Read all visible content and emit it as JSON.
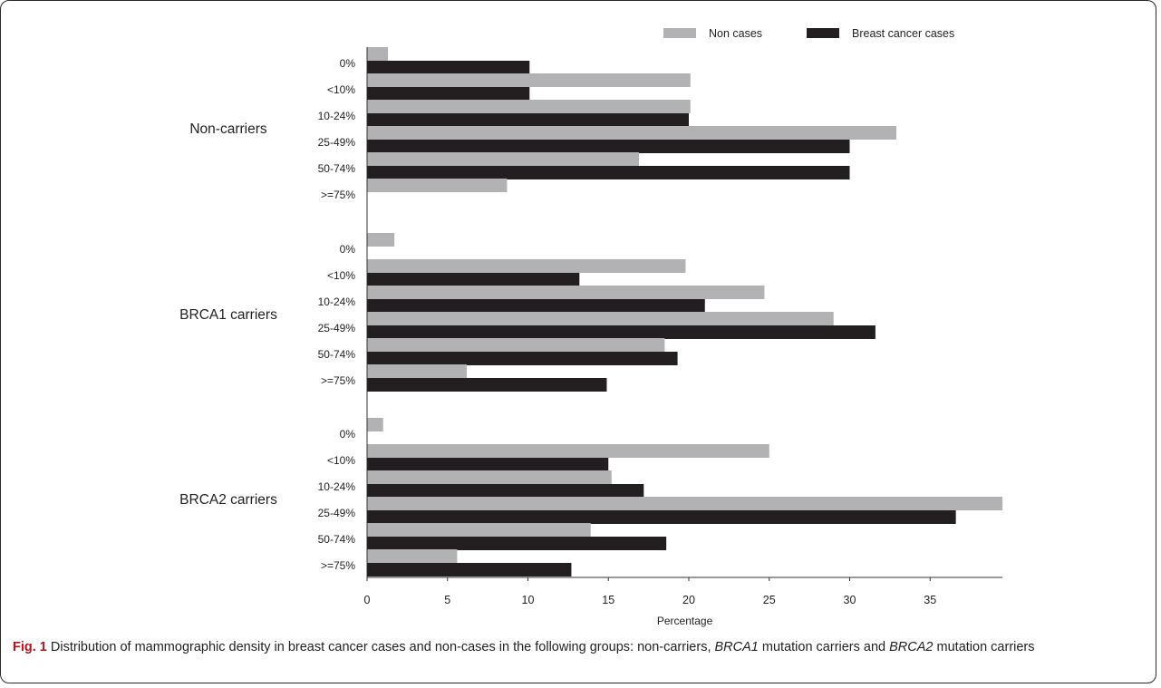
{
  "chart_data": {
    "type": "bar",
    "orientation": "horizontal",
    "xlabel": "Percentage",
    "xlim": [
      0,
      39.5
    ],
    "xticks": [
      0,
      5,
      10,
      15,
      20,
      25,
      30,
      35
    ],
    "legend_position": "top",
    "series": [
      {
        "name": "Non cases",
        "color": "#b2b2b4"
      },
      {
        "name": "Breast cancer cases",
        "color": "#231f20"
      }
    ],
    "groups": [
      {
        "name": "Non-carriers",
        "categories": [
          "0%",
          "<10%",
          "10-24%",
          "25-49%",
          "50-74%",
          ">=75%"
        ],
        "non_cases": [
          1.3,
          20.1,
          20.1,
          32.9,
          16.9,
          8.7
        ],
        "cases": [
          10.1,
          10.1,
          20.0,
          30.0,
          30.0,
          0
        ]
      },
      {
        "name": "BRCA1 carriers",
        "categories": [
          "0%",
          "<10%",
          "10-24%",
          "25-49%",
          "50-74%",
          ">=75%"
        ],
        "non_cases": [
          1.7,
          19.8,
          24.7,
          29.0,
          18.5,
          6.2
        ],
        "cases": [
          0,
          13.2,
          21.0,
          31.6,
          19.3,
          14.9
        ]
      },
      {
        "name": "BRCA2 carriers",
        "categories": [
          "0%",
          "<10%",
          "10-24%",
          "25-49%",
          "50-74%",
          ">=75%"
        ],
        "non_cases": [
          1.0,
          25.0,
          15.2,
          39.5,
          13.9,
          5.6
        ],
        "cases": [
          0,
          15.0,
          17.2,
          36.6,
          18.6,
          12.7
        ]
      }
    ]
  },
  "caption": {
    "label": "Fig. 1",
    "part1": "Distribution of mammographic density in breast cancer cases and non-cases in the following groups: non-carriers,",
    "gene1": "BRCA1",
    "part2": "mutation carriers and",
    "gene2": "BRCA2",
    "part3": "mutation carriers"
  }
}
